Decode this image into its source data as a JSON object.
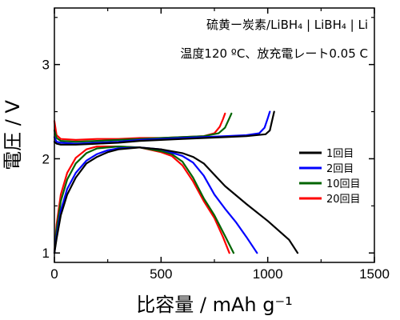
{
  "chart_data": {
    "type": "line",
    "xlabel": "比容量 / mAh g⁻¹",
    "ylabel": "電圧 / V",
    "xlim": [
      0,
      1500
    ],
    "ylim": [
      0.9,
      3.6
    ],
    "xticks": [
      0,
      500,
      1000,
      1500
    ],
    "yticks": [
      1,
      2,
      3
    ],
    "grid": false,
    "legend_position": "right",
    "annotations": [
      "硫黄ー炭素/LiBH₄ | LiBH₄ | Li",
      "温度120 ºC、放充電レート0.05 C"
    ],
    "series": [
      {
        "name": "1回目",
        "color": "#000000",
        "discharge": [
          [
            0,
            1.0
          ],
          [
            10,
            1.15
          ],
          [
            30,
            1.4
          ],
          [
            60,
            1.62
          ],
          [
            100,
            1.8
          ],
          [
            150,
            1.95
          ],
          [
            200,
            2.02
          ],
          [
            250,
            2.07
          ],
          [
            300,
            2.1
          ],
          [
            400,
            2.12
          ],
          [
            500,
            2.1
          ],
          [
            600,
            2.06
          ],
          [
            650,
            2.02
          ],
          [
            700,
            1.95
          ],
          [
            750,
            1.83
          ],
          [
            800,
            1.71
          ],
          [
            900,
            1.52
          ],
          [
            1000,
            1.34
          ],
          [
            1100,
            1.14
          ],
          [
            1140,
            1.0
          ]
        ],
        "charge": [
          [
            0,
            2.18
          ],
          [
            10,
            2.16
          ],
          [
            30,
            2.15
          ],
          [
            100,
            2.15
          ],
          [
            200,
            2.16
          ],
          [
            300,
            2.17
          ],
          [
            400,
            2.19
          ],
          [
            500,
            2.2
          ],
          [
            600,
            2.21
          ],
          [
            700,
            2.22
          ],
          [
            800,
            2.23
          ],
          [
            900,
            2.24
          ],
          [
            990,
            2.26
          ],
          [
            1010,
            2.3
          ],
          [
            1020,
            2.4
          ],
          [
            1030,
            2.5
          ]
        ]
      },
      {
        "name": "2回目",
        "color": "#0000ff",
        "discharge": [
          [
            0,
            1.0
          ],
          [
            10,
            1.18
          ],
          [
            30,
            1.45
          ],
          [
            60,
            1.68
          ],
          [
            100,
            1.85
          ],
          [
            150,
            1.98
          ],
          [
            200,
            2.05
          ],
          [
            250,
            2.09
          ],
          [
            300,
            2.11
          ],
          [
            400,
            2.12
          ],
          [
            500,
            2.1
          ],
          [
            600,
            2.03
          ],
          [
            650,
            1.96
          ],
          [
            700,
            1.82
          ],
          [
            750,
            1.62
          ],
          [
            800,
            1.47
          ],
          [
            850,
            1.33
          ],
          [
            900,
            1.17
          ],
          [
            950,
            1.0
          ]
        ],
        "charge": [
          [
            0,
            2.23
          ],
          [
            10,
            2.18
          ],
          [
            30,
            2.17
          ],
          [
            100,
            2.16
          ],
          [
            200,
            2.17
          ],
          [
            300,
            2.18
          ],
          [
            400,
            2.2
          ],
          [
            500,
            2.21
          ],
          [
            600,
            2.22
          ],
          [
            700,
            2.23
          ],
          [
            800,
            2.24
          ],
          [
            900,
            2.25
          ],
          [
            960,
            2.27
          ],
          [
            985,
            2.33
          ],
          [
            1000,
            2.43
          ],
          [
            1010,
            2.5
          ]
        ]
      },
      {
        "name": "10回目",
        "color": "#006400",
        "discharge": [
          [
            0,
            1.0
          ],
          [
            10,
            1.25
          ],
          [
            30,
            1.55
          ],
          [
            60,
            1.78
          ],
          [
            100,
            1.95
          ],
          [
            150,
            2.06
          ],
          [
            200,
            2.11
          ],
          [
            300,
            2.13
          ],
          [
            400,
            2.12
          ],
          [
            500,
            2.08
          ],
          [
            550,
            2.05
          ],
          [
            600,
            1.97
          ],
          [
            650,
            1.8
          ],
          [
            700,
            1.58
          ],
          [
            750,
            1.4
          ],
          [
            800,
            1.18
          ],
          [
            840,
            1.0
          ]
        ],
        "charge": [
          [
            0,
            2.3
          ],
          [
            10,
            2.22
          ],
          [
            30,
            2.19
          ],
          [
            100,
            2.18
          ],
          [
            200,
            2.19
          ],
          [
            300,
            2.2
          ],
          [
            400,
            2.21
          ],
          [
            500,
            2.22
          ],
          [
            600,
            2.23
          ],
          [
            700,
            2.24
          ],
          [
            770,
            2.27
          ],
          [
            800,
            2.33
          ],
          [
            820,
            2.43
          ],
          [
            830,
            2.48
          ]
        ]
      },
      {
        "name": "20回目",
        "color": "#ff0000",
        "discharge": [
          [
            0,
            1.0
          ],
          [
            10,
            1.3
          ],
          [
            30,
            1.62
          ],
          [
            60,
            1.85
          ],
          [
            100,
            2.01
          ],
          [
            150,
            2.1
          ],
          [
            200,
            2.13
          ],
          [
            300,
            2.13
          ],
          [
            400,
            2.12
          ],
          [
            500,
            2.07
          ],
          [
            550,
            2.03
          ],
          [
            600,
            1.93
          ],
          [
            650,
            1.76
          ],
          [
            700,
            1.55
          ],
          [
            750,
            1.37
          ],
          [
            790,
            1.17
          ],
          [
            820,
            1.0
          ]
        ],
        "charge": [
          [
            0,
            2.4
          ],
          [
            10,
            2.25
          ],
          [
            30,
            2.21
          ],
          [
            100,
            2.2
          ],
          [
            200,
            2.21
          ],
          [
            300,
            2.21
          ],
          [
            400,
            2.22
          ],
          [
            500,
            2.22
          ],
          [
            600,
            2.23
          ],
          [
            700,
            2.24
          ],
          [
            750,
            2.27
          ],
          [
            775,
            2.34
          ],
          [
            790,
            2.42
          ],
          [
            800,
            2.48
          ]
        ]
      }
    ]
  }
}
